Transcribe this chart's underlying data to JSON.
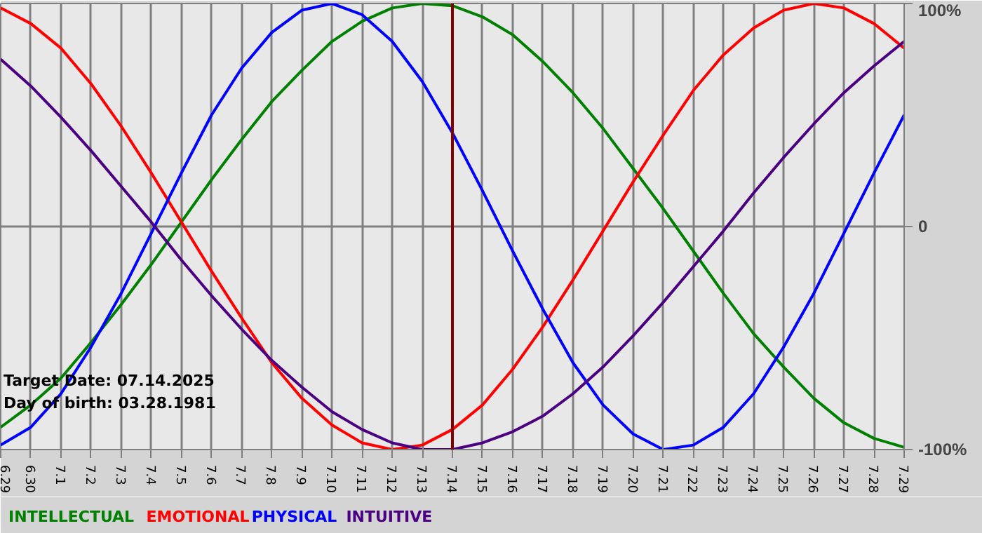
{
  "chart_data": {
    "type": "line",
    "categories": [
      "6.29",
      "6.30",
      "7.1",
      "7.2",
      "7.3",
      "7.4",
      "7.5",
      "7.6",
      "7.7",
      "7.8",
      "7.9",
      "7.10",
      "7.11",
      "7.12",
      "7.13",
      "7.14",
      "7.15",
      "7.16",
      "7.17",
      "7.18",
      "7.19",
      "7.20",
      "7.21",
      "7.22",
      "7.23",
      "7.24",
      "7.25",
      "7.26",
      "7.27",
      "7.28",
      "7.29"
    ],
    "series": [
      {
        "name": "INTELLECTUAL",
        "color": "#008000",
        "values": [
          -90,
          -80,
          -68,
          -52,
          -35,
          -17,
          2,
          21,
          39,
          56,
          70,
          83,
          92,
          98,
          100,
          99,
          94,
          86,
          74,
          60,
          44,
          26,
          8,
          -11,
          -30,
          -48,
          -63,
          -77,
          -88,
          -95,
          -99
        ]
      },
      {
        "name": "EMOTIONAL",
        "color": "#ff0000",
        "values": [
          98,
          91,
          80,
          64,
          45,
          24,
          2,
          -20,
          -41,
          -61,
          -77,
          -89,
          -97,
          -100,
          -98,
          -91,
          -80,
          -64,
          -45,
          -24,
          -2,
          20,
          41,
          61,
          77,
          89,
          97,
          100,
          98,
          91,
          80
        ]
      },
      {
        "name": "PHYSICAL",
        "color": "#0000ff",
        "values": [
          -98,
          -90,
          -75,
          -54,
          -30,
          -3,
          24,
          50,
          71,
          87,
          97,
          100,
          95,
          83,
          65,
          42,
          16,
          -11,
          -37,
          -61,
          -80,
          -93,
          -100,
          -98,
          -90,
          -75,
          -54,
          -30,
          -3,
          24,
          50
        ]
      },
      {
        "name": "INTUITIVE",
        "color": "#4b0082",
        "values": [
          75,
          63,
          49,
          34,
          18,
          2,
          -15,
          -31,
          -46,
          -60,
          -72,
          -83,
          -91,
          -97,
          -100,
          -100,
          -97,
          -92,
          -85,
          -75,
          -63,
          -49,
          -34,
          -18,
          -2,
          15,
          31,
          46,
          60,
          72,
          83
        ]
      }
    ],
    "ylim": [
      -100,
      100
    ],
    "yticks": [
      {
        "value": 100,
        "label": "100%"
      },
      0,
      {
        "value": -100,
        "label": "-100%"
      }
    ],
    "ref_lines": [
      {
        "axis": "x",
        "value": "7.14",
        "color": "#800000"
      }
    ],
    "annotations": [
      "Target Date: 07.14.2025",
      "Day of birth: 03.28.1981"
    ],
    "grid": true
  }
}
